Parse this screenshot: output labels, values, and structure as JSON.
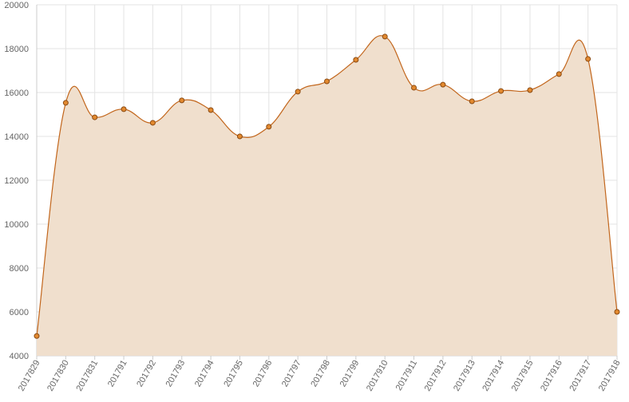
{
  "chart_data": {
    "type": "area",
    "categories": [
      "2017829",
      "2017830",
      "2017831",
      "201791",
      "201792",
      "201793",
      "201794",
      "201795",
      "201796",
      "201797",
      "201798",
      "201799",
      "2017910",
      "2017911",
      "2017912",
      "2017913",
      "2017914",
      "2017915",
      "2017916",
      "2017917",
      "2017918"
    ],
    "values": [
      4900,
      15530,
      14870,
      15240,
      14620,
      15640,
      15200,
      14000,
      14440,
      16040,
      16510,
      17490,
      18550,
      16220,
      16360,
      15600,
      16070,
      16110,
      16840,
      17530,
      6000
    ],
    "color": "#c2661c",
    "fill": "#f0dfcd",
    "point_color": "#e2892f",
    "ylim": [
      4000,
      20000
    ],
    "yticks": [
      4000,
      6000,
      8000,
      10000,
      12000,
      14000,
      16000,
      18000,
      20000
    ],
    "grid": true
  }
}
